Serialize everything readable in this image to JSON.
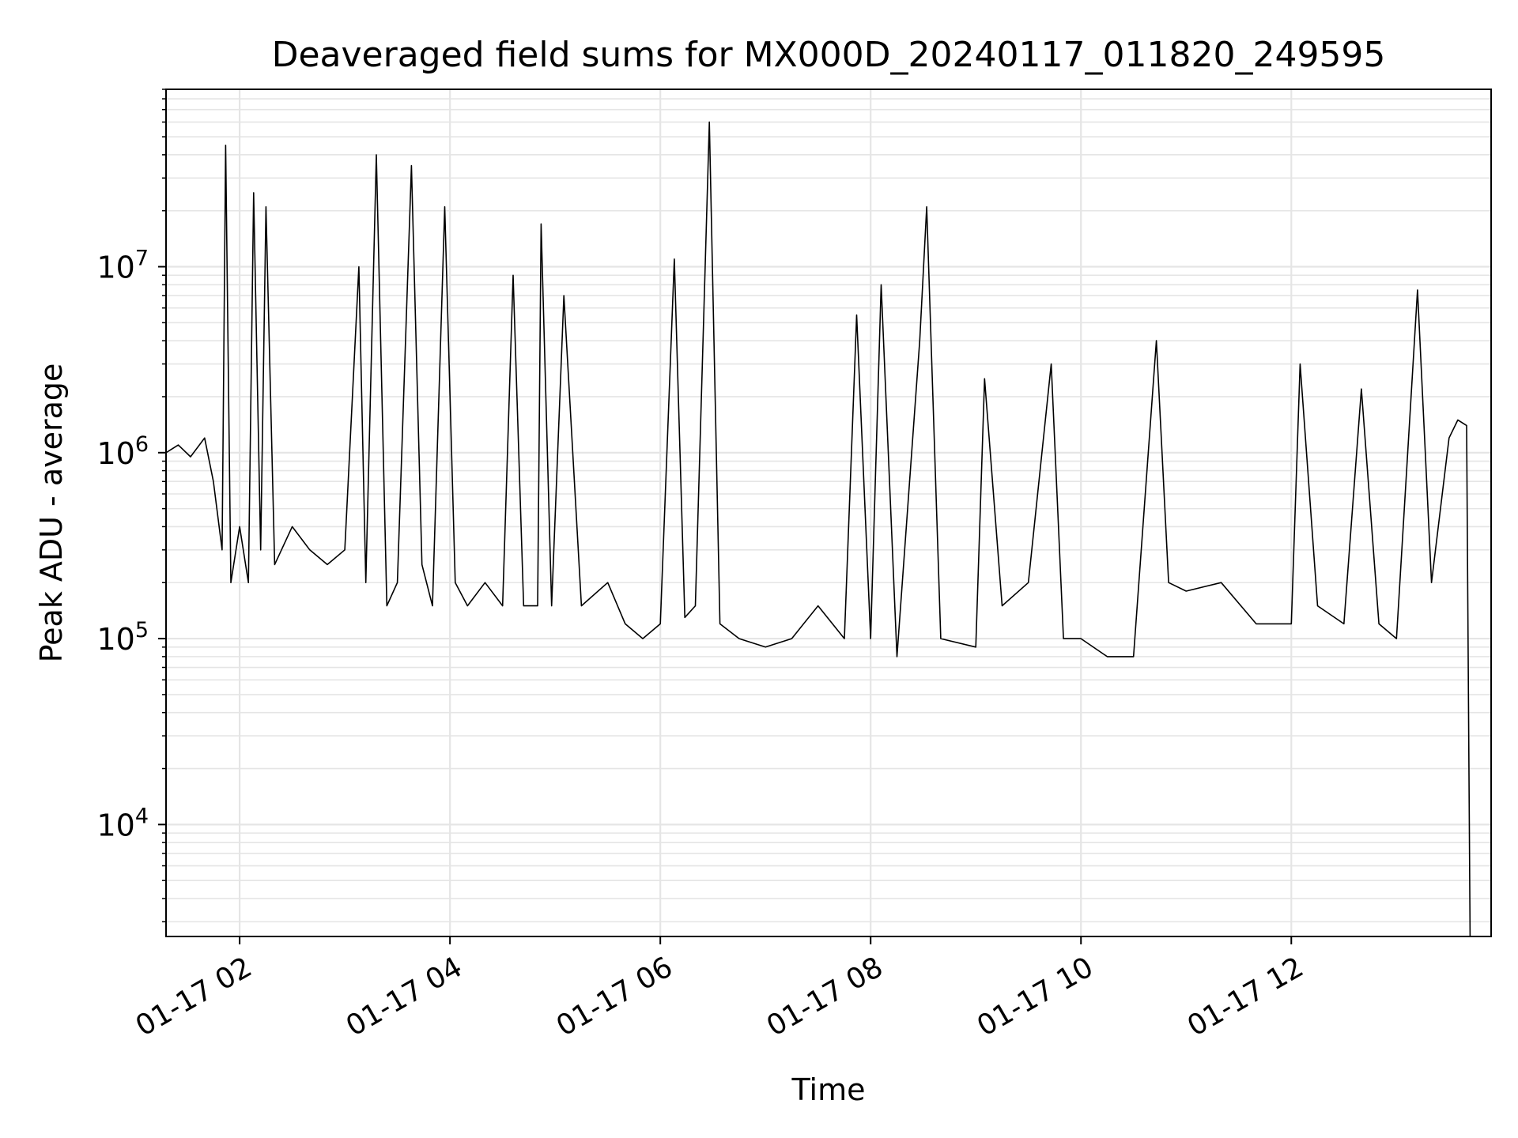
{
  "chart_data": {
    "type": "line",
    "title": "Deaveraged field sums for MX000D_20240117_011820_249595",
    "xlabel": "Time",
    "ylabel": "Peak ADU - average",
    "yscale": "log",
    "ylim": [
      2500,
      90000000
    ],
    "xlim": [
      "2024-01-17T01:18:00",
      "2024-01-17T13:54:00"
    ],
    "grid": "major and minor",
    "legend": "none",
    "line_color": "#000000",
    "grid_color": "#e5e5e5",
    "x_ticks": [
      {
        "label": "01-17 02",
        "time": "2024-01-17T02:00:00"
      },
      {
        "label": "01-17 04",
        "time": "2024-01-17T04:00:00"
      },
      {
        "label": "01-17 06",
        "time": "2024-01-17T06:00:00"
      },
      {
        "label": "01-17 08",
        "time": "2024-01-17T08:00:00"
      },
      {
        "label": "01-17 10",
        "time": "2024-01-17T10:00:00"
      },
      {
        "label": "01-17 12",
        "time": "2024-01-17T12:00:00"
      }
    ],
    "y_ticks": [
      {
        "base": "10",
        "exp": "4",
        "value": 10000
      },
      {
        "base": "10",
        "exp": "5",
        "value": 100000
      },
      {
        "base": "10",
        "exp": "6",
        "value": 1000000
      },
      {
        "base": "10",
        "exp": "7",
        "value": 10000000
      }
    ],
    "series": [
      {
        "points": [
          [
            "2024-01-17T01:18:00",
            1000000
          ],
          [
            "2024-01-17T01:25:00",
            1100000
          ],
          [
            "2024-01-17T01:32:00",
            950000
          ],
          [
            "2024-01-17T01:40:00",
            1200000
          ],
          [
            "2024-01-17T01:45:00",
            700000
          ],
          [
            "2024-01-17T01:50:00",
            300000
          ],
          [
            "2024-01-17T01:52:00",
            45000000
          ],
          [
            "2024-01-17T01:55:00",
            200000
          ],
          [
            "2024-01-17T02:00:00",
            400000
          ],
          [
            "2024-01-17T02:05:00",
            200000
          ],
          [
            "2024-01-17T02:08:00",
            25000000
          ],
          [
            "2024-01-17T02:12:00",
            300000
          ],
          [
            "2024-01-17T02:15:00",
            21000000
          ],
          [
            "2024-01-17T02:20:00",
            250000
          ],
          [
            "2024-01-17T02:30:00",
            400000
          ],
          [
            "2024-01-17T02:40:00",
            300000
          ],
          [
            "2024-01-17T02:50:00",
            250000
          ],
          [
            "2024-01-17T03:00:00",
            300000
          ],
          [
            "2024-01-17T03:08:00",
            10000000
          ],
          [
            "2024-01-17T03:12:00",
            200000
          ],
          [
            "2024-01-17T03:18:00",
            40000000
          ],
          [
            "2024-01-17T03:24:00",
            150000
          ],
          [
            "2024-01-17T03:30:00",
            200000
          ],
          [
            "2024-01-17T03:38:00",
            35000000
          ],
          [
            "2024-01-17T03:44:00",
            250000
          ],
          [
            "2024-01-17T03:50:00",
            150000
          ],
          [
            "2024-01-17T03:57:00",
            21000000
          ],
          [
            "2024-01-17T04:03:00",
            200000
          ],
          [
            "2024-01-17T04:10:00",
            150000
          ],
          [
            "2024-01-17T04:20:00",
            200000
          ],
          [
            "2024-01-17T04:30:00",
            150000
          ],
          [
            "2024-01-17T04:36:00",
            9000000
          ],
          [
            "2024-01-17T04:42:00",
            150000
          ],
          [
            "2024-01-17T04:50:00",
            150000
          ],
          [
            "2024-01-17T04:52:00",
            17000000
          ],
          [
            "2024-01-17T04:58:00",
            150000
          ],
          [
            "2024-01-17T05:05:00",
            7000000
          ],
          [
            "2024-01-17T05:15:00",
            150000
          ],
          [
            "2024-01-17T05:30:00",
            200000
          ],
          [
            "2024-01-17T05:40:00",
            120000
          ],
          [
            "2024-01-17T05:50:00",
            100000
          ],
          [
            "2024-01-17T06:00:00",
            120000
          ],
          [
            "2024-01-17T06:08:00",
            11000000
          ],
          [
            "2024-01-17T06:14:00",
            130000
          ],
          [
            "2024-01-17T06:20:00",
            150000
          ],
          [
            "2024-01-17T06:28:00",
            60000000
          ],
          [
            "2024-01-17T06:34:00",
            120000
          ],
          [
            "2024-01-17T06:45:00",
            100000
          ],
          [
            "2024-01-17T07:00:00",
            90000
          ],
          [
            "2024-01-17T07:15:00",
            100000
          ],
          [
            "2024-01-17T07:30:00",
            150000
          ],
          [
            "2024-01-17T07:45:00",
            100000
          ],
          [
            "2024-01-17T07:52:00",
            5500000
          ],
          [
            "2024-01-17T08:00:00",
            100000
          ],
          [
            "2024-01-17T08:06:00",
            8000000
          ],
          [
            "2024-01-17T08:15:00",
            80000
          ],
          [
            "2024-01-17T08:28:00",
            4000000
          ],
          [
            "2024-01-17T08:32:00",
            21000000
          ],
          [
            "2024-01-17T08:40:00",
            100000
          ],
          [
            "2024-01-17T09:00:00",
            90000
          ],
          [
            "2024-01-17T09:05:00",
            2500000
          ],
          [
            "2024-01-17T09:15:00",
            150000
          ],
          [
            "2024-01-17T09:30:00",
            200000
          ],
          [
            "2024-01-17T09:43:00",
            3000000
          ],
          [
            "2024-01-17T09:50:00",
            100000
          ],
          [
            "2024-01-17T10:00:00",
            100000
          ],
          [
            "2024-01-17T10:15:00",
            80000
          ],
          [
            "2024-01-17T10:30:00",
            80000
          ],
          [
            "2024-01-17T10:43:00",
            4000000
          ],
          [
            "2024-01-17T10:50:00",
            200000
          ],
          [
            "2024-01-17T11:00:00",
            180000
          ],
          [
            "2024-01-17T11:20:00",
            200000
          ],
          [
            "2024-01-17T11:40:00",
            120000
          ],
          [
            "2024-01-17T12:00:00",
            120000
          ],
          [
            "2024-01-17T12:05:00",
            3000000
          ],
          [
            "2024-01-17T12:15:00",
            150000
          ],
          [
            "2024-01-17T12:30:00",
            120000
          ],
          [
            "2024-01-17T12:40:00",
            2200000
          ],
          [
            "2024-01-17T12:50:00",
            120000
          ],
          [
            "2024-01-17T13:00:00",
            100000
          ],
          [
            "2024-01-17T13:12:00",
            7500000
          ],
          [
            "2024-01-17T13:20:00",
            200000
          ],
          [
            "2024-01-17T13:30:00",
            1200000
          ],
          [
            "2024-01-17T13:35:00",
            1500000
          ],
          [
            "2024-01-17T13:40:00",
            1400000
          ],
          [
            "2024-01-17T13:42:00",
            2500
          ]
        ]
      }
    ]
  }
}
